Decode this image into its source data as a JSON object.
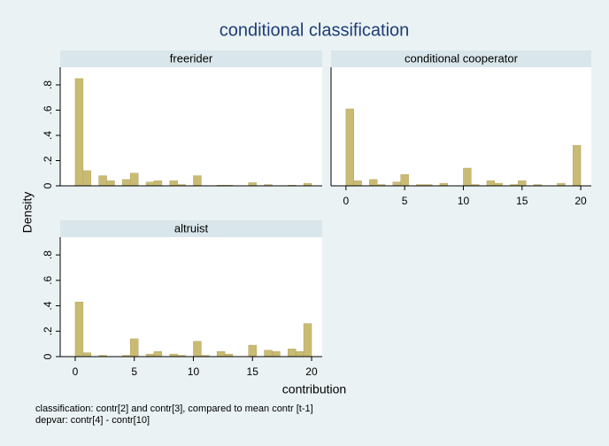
{
  "figure": {
    "title": "conditional classification",
    "y_label": "Density",
    "x_label": "contribution",
    "notes": [
      "classification: contr[2] and contr[3], compared to mean contr [t-1]",
      "depvar: contr[4] - contr[10]"
    ]
  },
  "chart_data": [
    {
      "type": "histogram",
      "title": "freerider",
      "color": "#c9bb73",
      "bins": [
        0,
        0.667,
        1.333,
        2,
        2.667,
        3.333,
        4,
        4.667,
        5.333,
        6,
        6.667,
        7.333,
        8,
        8.667,
        9.333,
        10,
        10.667,
        11.333,
        12,
        12.667,
        13.333,
        14,
        14.667,
        15.333,
        16,
        16.667,
        17.333,
        18,
        18.667,
        19.333,
        20
      ],
      "counts": [
        0.85,
        0.12,
        0,
        0.08,
        0.04,
        0,
        0.05,
        0.1,
        0,
        0.03,
        0.04,
        0,
        0.04,
        0.01,
        0,
        0.08,
        0,
        0,
        0.005,
        0.005,
        0,
        0,
        0.025,
        0,
        0.01,
        0,
        0,
        0.005,
        0,
        0.02
      ],
      "xlim": [
        -1.27,
        20.9
      ],
      "ylim": [
        0,
        0.94
      ],
      "yticks": [
        0,
        {
          "value": 0.2,
          "label": ".2"
        },
        {
          "value": 0.4,
          "label": ".4"
        },
        {
          "value": 0.6,
          "label": ".6"
        },
        {
          "value": 0.8,
          "label": ".8"
        }
      ]
    },
    {
      "type": "histogram",
      "title": "conditional cooperator",
      "color": "#c9bb73",
      "bins": [
        0,
        0.667,
        1.333,
        2,
        2.667,
        3.333,
        4,
        4.667,
        5.333,
        6,
        6.667,
        7.333,
        8,
        8.667,
        9.333,
        10,
        10.667,
        11.333,
        12,
        12.667,
        13.333,
        14,
        14.667,
        15.333,
        16,
        16.667,
        17.333,
        18,
        18.667,
        19.333,
        20
      ],
      "counts": [
        0.61,
        0.04,
        0,
        0.05,
        0.01,
        0,
        0.03,
        0.09,
        0,
        0.01,
        0.01,
        0,
        0.02,
        0,
        0,
        0.14,
        0.01,
        0,
        0.04,
        0.02,
        0,
        0.01,
        0.04,
        0,
        0.01,
        0,
        0,
        0.02,
        0,
        0.32
      ],
      "xlim": [
        -1.27,
        20.9
      ],
      "ylim": [
        0,
        0.94
      ],
      "xticks": [
        0,
        5,
        10,
        15,
        20
      ]
    },
    {
      "type": "histogram",
      "title": "altruist",
      "color": "#c9bb73",
      "bins": [
        0,
        0.667,
        1.333,
        2,
        2.667,
        3.333,
        4,
        4.667,
        5.333,
        6,
        6.667,
        7.333,
        8,
        8.667,
        9.333,
        10,
        10.667,
        11.333,
        12,
        12.667,
        13.333,
        14,
        14.667,
        15.333,
        16,
        16.667,
        17.333,
        18,
        18.667,
        19.333,
        20
      ],
      "counts": [
        0.43,
        0.03,
        0,
        0.01,
        0,
        0,
        0.01,
        0.14,
        0,
        0.02,
        0.04,
        0,
        0.02,
        0.01,
        0,
        0.12,
        0.01,
        0,
        0.04,
        0.02,
        0,
        0,
        0.09,
        0,
        0.05,
        0.04,
        0,
        0.06,
        0.04,
        0.26
      ],
      "xlim": [
        -1.27,
        20.9
      ],
      "ylim": [
        0,
        0.94
      ],
      "xticks": [
        0,
        5,
        10,
        15,
        20
      ],
      "yticks": [
        0,
        {
          "value": 0.2,
          "label": ".2"
        },
        {
          "value": 0.4,
          "label": ".4"
        },
        {
          "value": 0.6,
          "label": ".6"
        },
        {
          "value": 0.8,
          "label": ".8"
        }
      ]
    }
  ]
}
